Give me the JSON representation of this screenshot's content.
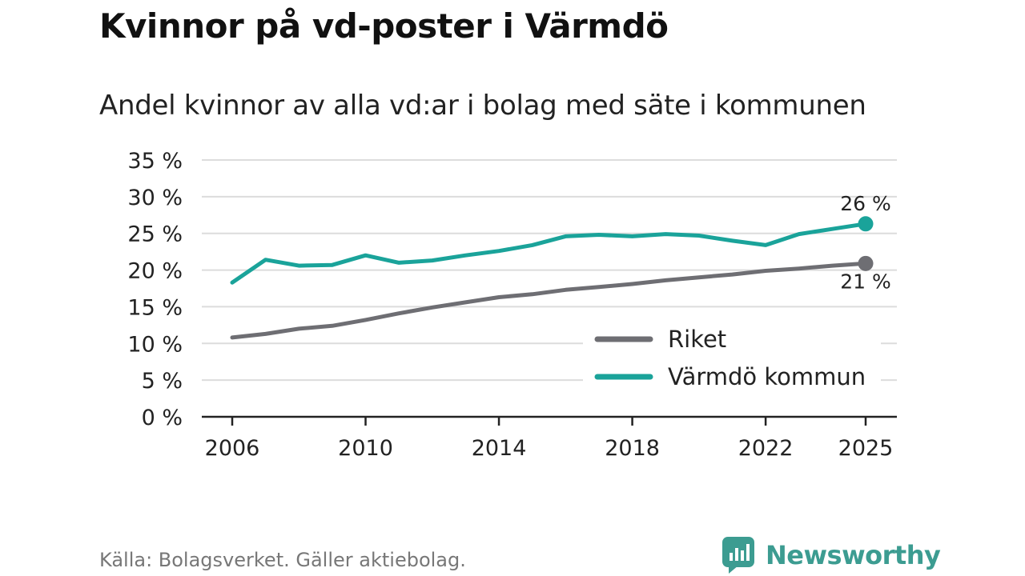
{
  "chart_data": {
    "type": "line",
    "title": "Kvinnor på vd-poster i Värmdö",
    "subtitle": "Andel kvinnor av alla vd:ar i bolag med säte i kommunen",
    "x": [
      2006,
      2007,
      2008,
      2009,
      2010,
      2011,
      2012,
      2013,
      2014,
      2015,
      2016,
      2017,
      2018,
      2019,
      2020,
      2021,
      2022,
      2023,
      2024,
      2025
    ],
    "x_ticks": [
      "2006",
      "2010",
      "2014",
      "2018",
      "2022",
      "2025"
    ],
    "y_ticks": [
      "0 %",
      "5 %",
      "10 %",
      "15 %",
      "20 %",
      "25 %",
      "30 %",
      "35 %"
    ],
    "ylim": [
      0,
      35
    ],
    "xlim": [
      2006,
      2025
    ],
    "series": [
      {
        "name": "Riket",
        "color": "#6e6e73",
        "values": [
          10.8,
          11.3,
          12.0,
          12.4,
          13.2,
          14.1,
          14.9,
          15.6,
          16.3,
          16.7,
          17.3,
          17.7,
          18.1,
          18.6,
          19.0,
          19.4,
          19.9,
          20.2,
          20.6,
          20.9
        ],
        "end_label": "21 %"
      },
      {
        "name": "Värmdö kommun",
        "color": "#1aa39a",
        "values": [
          18.3,
          21.4,
          20.6,
          20.7,
          22.0,
          21.0,
          21.3,
          22.0,
          22.6,
          23.4,
          24.6,
          24.8,
          24.6,
          24.9,
          24.7,
          24.0,
          23.4,
          24.9,
          25.6,
          26.3
        ],
        "end_label": "26 %"
      }
    ],
    "legend": [
      "Riket",
      "Värmdö kommun"
    ],
    "legend_position": "bottom-right",
    "grid": true
  },
  "source": "Källa: Bolagsverket. Gäller aktiebolag.",
  "brand": {
    "name": "Newsworthy",
    "color": "#3c9c91"
  }
}
